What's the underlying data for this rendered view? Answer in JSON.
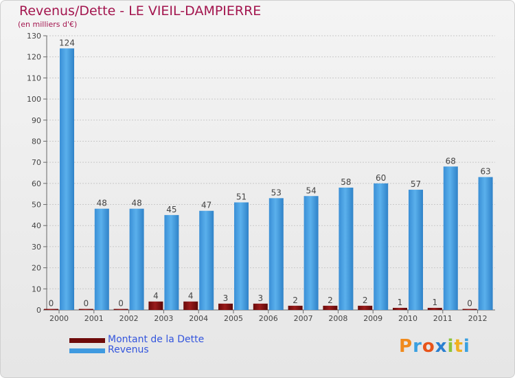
{
  "title": "Revenus/Dette - LE VIEIL-DAMPIERRE",
  "subtitle": "(en milliers d'€)",
  "logo_text": "Proxiti",
  "colors": {
    "title": "#a3154e",
    "dette": "#7a0e0e",
    "revenus": "#3f9ae0",
    "legend_text": "#3355dd",
    "grid": "#c8c8c8"
  },
  "chart_data": {
    "type": "bar",
    "title": "Revenus/Dette - LE VIEIL-DAMPIERRE",
    "ylabel": "(en milliers d'€)",
    "xlabel": "",
    "ylim": [
      0,
      130
    ],
    "yticks": [
      0,
      10,
      20,
      30,
      40,
      50,
      60,
      70,
      80,
      90,
      100,
      110,
      120,
      130
    ],
    "grid": true,
    "legend_position": "bottom-left",
    "categories": [
      "2000",
      "2001",
      "2002",
      "2003",
      "2004",
      "2005",
      "2006",
      "2007",
      "2008",
      "2009",
      "2010",
      "2011",
      "2012"
    ],
    "series": [
      {
        "name": "Montant de la Dette",
        "key": "dette",
        "values": [
          0,
          0,
          0,
          4,
          4,
          3,
          3,
          2,
          2,
          2,
          1,
          1,
          0
        ]
      },
      {
        "name": "Revenus",
        "key": "revenus",
        "values": [
          124,
          48,
          48,
          45,
          47,
          51,
          53,
          54,
          58,
          60,
          57,
          68,
          63
        ]
      }
    ]
  }
}
